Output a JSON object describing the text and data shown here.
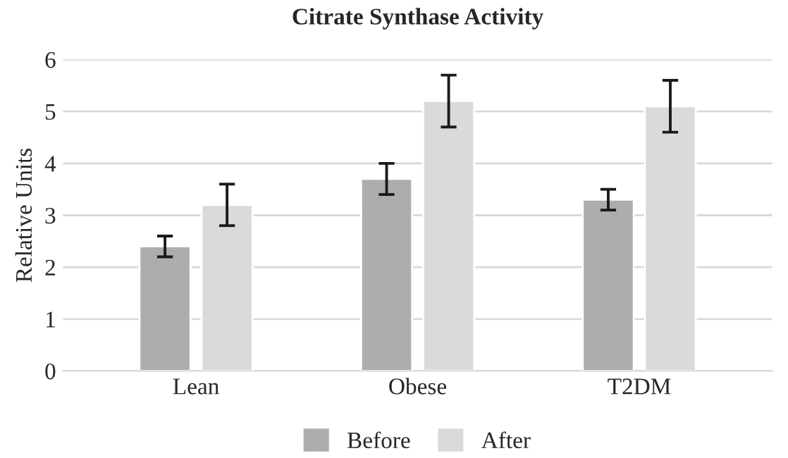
{
  "chart_data": {
    "type": "bar",
    "title": "Citrate Synthase Activity",
    "ylabel": "Relative Units",
    "categories": [
      "Lean",
      "Obese",
      "T2DM"
    ],
    "series": [
      {
        "name": "Before",
        "color": "#acadaf",
        "values": [
          2.4,
          3.7,
          3.3
        ],
        "errors": [
          0.2,
          0.3,
          0.2
        ]
      },
      {
        "name": "After",
        "color": "#d9dadb",
        "values": [
          3.2,
          5.2,
          5.1
        ],
        "errors": [
          0.4,
          0.5,
          0.5
        ]
      }
    ],
    "ylim": [
      0,
      6
    ],
    "yticks": [
      0,
      1,
      2,
      3,
      4,
      5,
      6
    ],
    "grid": "y",
    "legend": "bottom"
  }
}
